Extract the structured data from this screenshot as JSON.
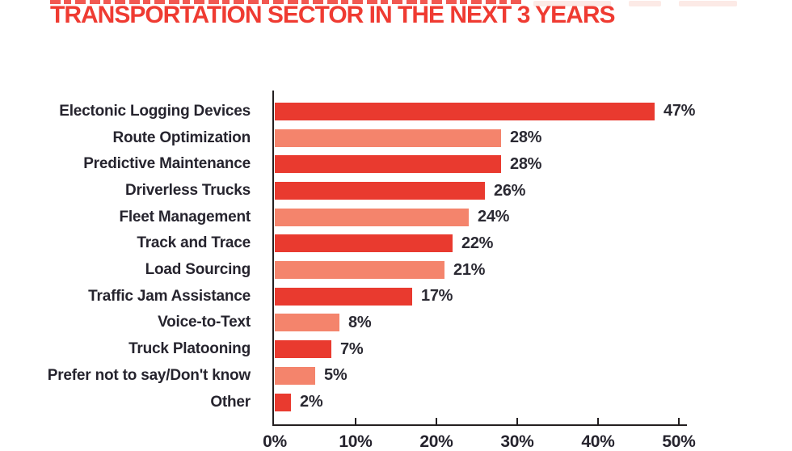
{
  "header": {
    "title": "TRANSPORTATION SECTOR IN THE NEXT 3 YEARS"
  },
  "colors": {
    "title_red": "#ef3b32",
    "bar_dark": "#e93a2f",
    "bar_light": "#f4846c",
    "text_dark": "#26242e",
    "axis": "#231f20",
    "background": "#ffffff"
  },
  "chart_data": {
    "type": "bar",
    "orientation": "horizontal",
    "title": "TRANSPORTATION SECTOR IN THE NEXT 3 YEARS",
    "categories": [
      "Electonic Logging Devices",
      "Route Optimization",
      "Predictive Maintenance",
      "Driverless Trucks",
      "Fleet Management",
      "Track and Trace",
      "Load Sourcing",
      "Traffic Jam Assistance",
      "Voice-to-Text",
      "Truck Platooning",
      "Prefer not to say/Don't know",
      "Other"
    ],
    "values": [
      47,
      28,
      28,
      26,
      24,
      22,
      21,
      17,
      8,
      7,
      5,
      2
    ],
    "value_labels": [
      "47%",
      "28%",
      "28%",
      "26%",
      "24%",
      "22%",
      "21%",
      "17%",
      "8%",
      "7%",
      "5%",
      "2%"
    ],
    "bar_color_pattern": [
      "dark",
      "light",
      "dark",
      "dark",
      "light",
      "dark",
      "light",
      "dark",
      "light",
      "dark",
      "light",
      "dark"
    ],
    "x_ticks": [
      "0%",
      "10%",
      "20%",
      "30%",
      "40%",
      "50%"
    ],
    "xlim": [
      0,
      50
    ],
    "grid": false,
    "legend": null
  }
}
